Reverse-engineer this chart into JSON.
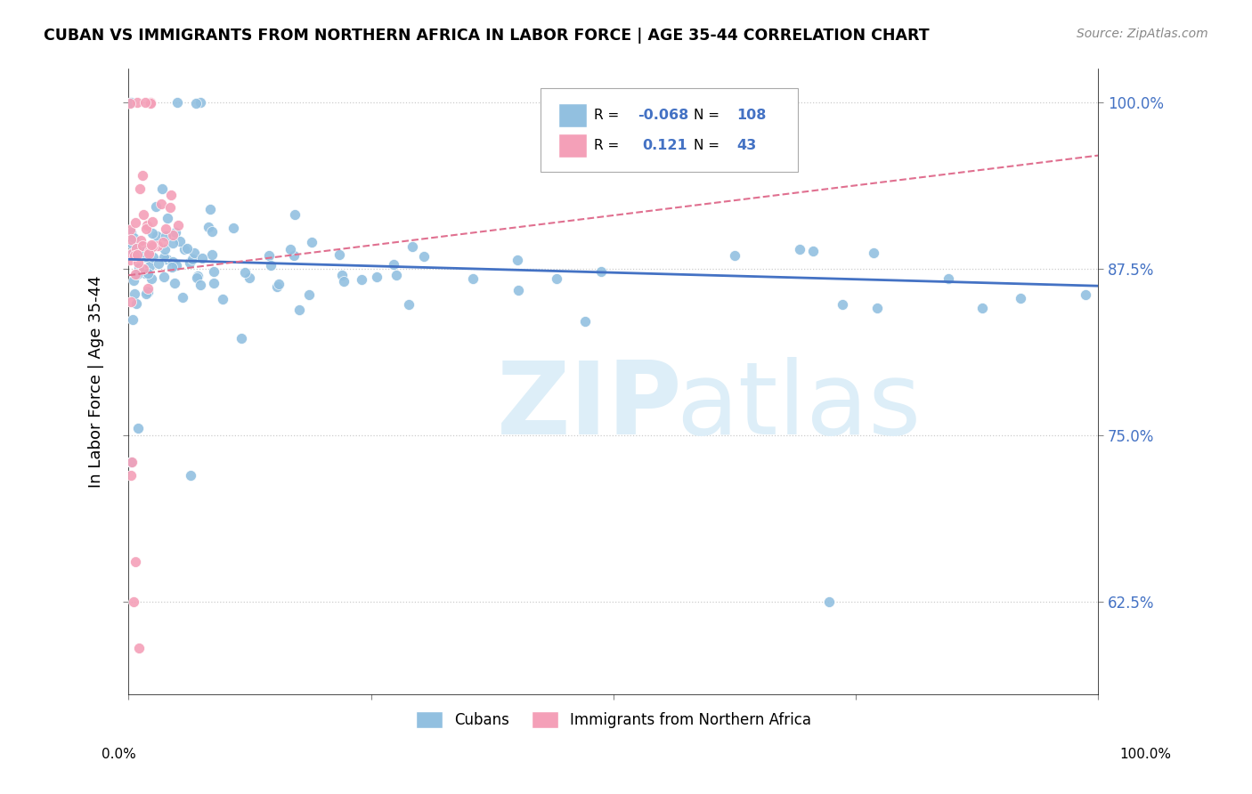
{
  "title": "CUBAN VS IMMIGRANTS FROM NORTHERN AFRICA IN LABOR FORCE | AGE 35-44 CORRELATION CHART",
  "source": "Source: ZipAtlas.com",
  "ylabel": "In Labor Force | Age 35-44",
  "right_yticklabels": [
    "62.5%",
    "75.0%",
    "87.5%",
    "100.0%"
  ],
  "right_yticks": [
    0.625,
    0.75,
    0.875,
    1.0
  ],
  "xlim": [
    0.0,
    1.0
  ],
  "ylim": [
    0.555,
    1.025
  ],
  "blue_R": "-0.068",
  "blue_N": "108",
  "pink_R": "0.121",
  "pink_N": "43",
  "blue_color": "#92c0e0",
  "pink_color": "#f4a0b8",
  "blue_line_color": "#4472c4",
  "pink_line_color": "#e07090",
  "legend_blue_color": "#4472c4",
  "watermark_color": "#ddeef8",
  "blue_trend_start_y": 0.882,
  "blue_trend_end_y": 0.862,
  "pink_trend_start_y": 0.87,
  "pink_trend_end_y": 0.96
}
